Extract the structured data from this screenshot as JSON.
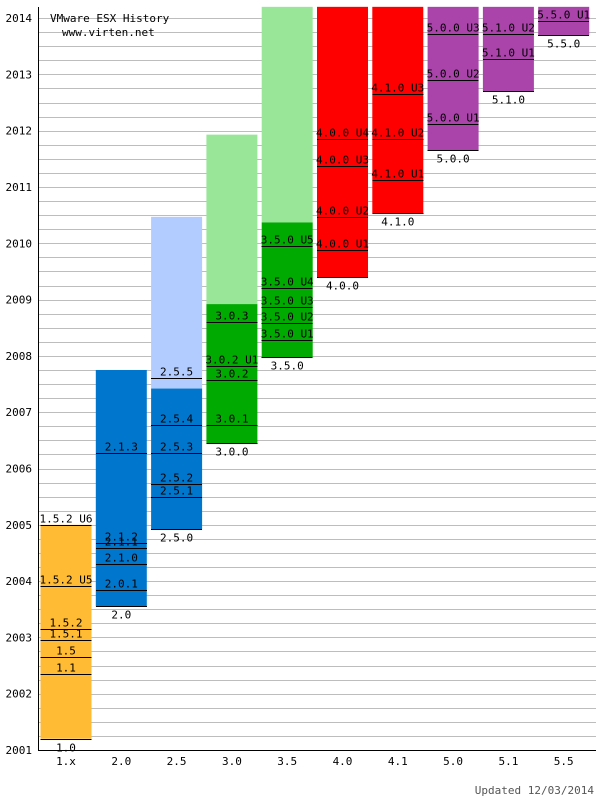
{
  "header": {
    "title": "VMware ESX History",
    "subtitle": "www.virten.net"
  },
  "footer": {
    "updated": "Updated 12/03/2014"
  },
  "chart_data": {
    "type": "bar",
    "title": "VMware ESX History",
    "xlabel": "",
    "ylabel": "",
    "ylim": [
      2001,
      2014.2
    ],
    "y_ticks": [
      2001,
      2002,
      2003,
      2004,
      2005,
      2006,
      2007,
      2008,
      2009,
      2010,
      2011,
      2012,
      2013,
      2014
    ],
    "grid": true,
    "categories": [
      "1.x",
      "2.0",
      "2.5",
      "3.0",
      "3.5",
      "4.0",
      "4.1",
      "5.0",
      "5.1",
      "5.5"
    ],
    "series": [
      {
        "category": "1.x",
        "color": "#ffbb33",
        "start": 2001.2,
        "end": 2005.0,
        "releases": [
          {
            "label": "1.0",
            "y": 2001.2
          },
          {
            "label": "1.1",
            "y": 2002.35
          },
          {
            "label": "1.5",
            "y": 2002.65
          },
          {
            "label": "1.5.1",
            "y": 2002.95
          },
          {
            "label": "1.5.2",
            "y": 2003.15
          },
          {
            "label": "1.5.2 U5",
            "y": 2003.92
          },
          {
            "label": "1.5.2 U6",
            "y": 2005.0
          }
        ]
      },
      {
        "category": "2.0",
        "color": "#0077cc",
        "start": 2003.55,
        "end": 2007.75,
        "releases": [
          {
            "label": "2.0",
            "y": 2003.55
          },
          {
            "label": "2.0.1",
            "y": 2003.85
          },
          {
            "label": "2.1.0",
            "y": 2004.3
          },
          {
            "label": "2.1.1",
            "y": 2004.58
          },
          {
            "label": "2.1.2",
            "y": 2004.68
          },
          {
            "label": "2.1.3",
            "y": 2006.28
          }
        ]
      },
      {
        "category": "2.5",
        "color": "#0077cc",
        "start": 2004.92,
        "end": 2007.42,
        "releases": [
          {
            "label": "2.5.0",
            "y": 2004.92
          },
          {
            "label": "2.5.1",
            "y": 2005.5
          },
          {
            "label": "2.5.2",
            "y": 2005.72
          },
          {
            "label": "2.5.3",
            "y": 2006.27
          },
          {
            "label": "2.5.4",
            "y": 2006.77
          },
          {
            "label": "2.5.5",
            "y": 2007.6
          }
        ],
        "extended": {
          "color": "#b3ccff",
          "start": 2007.42,
          "end": 2010.47
        }
      },
      {
        "category": "3.0",
        "color": "#00aa00",
        "start": 2006.45,
        "end": 2008.92,
        "releases": [
          {
            "label": "3.0.0",
            "y": 2006.45
          },
          {
            "label": "3.0.1",
            "y": 2006.77
          },
          {
            "label": "3.0.2",
            "y": 2007.58
          },
          {
            "label": "3.0.2 U1",
            "y": 2007.82
          },
          {
            "label": "3.0.3",
            "y": 2008.6
          }
        ],
        "extended": {
          "color": "#99e699",
          "start": 2008.92,
          "end": 2011.93
        }
      },
      {
        "category": "3.5",
        "color": "#00aa00",
        "start": 2007.98,
        "end": 2010.37,
        "releases": [
          {
            "label": "3.5.0",
            "y": 2007.98
          },
          {
            "label": "3.5.0 U1",
            "y": 2008.28
          },
          {
            "label": "3.5.0 U2",
            "y": 2008.58
          },
          {
            "label": "3.5.0 U3",
            "y": 2008.87
          },
          {
            "label": "3.5.0 U4",
            "y": 2009.2
          },
          {
            "label": "3.5.0 U5",
            "y": 2009.95
          }
        ],
        "extended": {
          "color": "#99e699",
          "start": 2010.37,
          "end": 2014.2
        }
      },
      {
        "category": "4.0",
        "color": "#ff0000",
        "start": 2009.4,
        "end": 2014.2,
        "releases": [
          {
            "label": "4.0.0",
            "y": 2009.4
          },
          {
            "label": "4.0.0 U1",
            "y": 2009.88
          },
          {
            "label": "4.0.0 U2",
            "y": 2010.47
          },
          {
            "label": "4.0.0 U3",
            "y": 2011.37
          },
          {
            "label": "4.0.0 U4",
            "y": 2011.85
          }
        ]
      },
      {
        "category": "4.1",
        "color": "#ff0000",
        "start": 2010.53,
        "end": 2014.2,
        "releases": [
          {
            "label": "4.1.0",
            "y": 2010.53
          },
          {
            "label": "4.1.0 U1",
            "y": 2011.12
          },
          {
            "label": "4.1.0 U2",
            "y": 2011.85
          },
          {
            "label": "4.1.0 U3",
            "y": 2012.65
          }
        ]
      },
      {
        "category": "5.0",
        "color": "#aa44aa",
        "start": 2011.65,
        "end": 2014.2,
        "releases": [
          {
            "label": "5.0.0",
            "y": 2011.65
          },
          {
            "label": "5.0.0 U1",
            "y": 2012.12
          },
          {
            "label": "5.0.0 U2",
            "y": 2012.9
          },
          {
            "label": "5.0.0 U3",
            "y": 2013.72
          }
        ]
      },
      {
        "category": "5.1",
        "color": "#aa44aa",
        "start": 2012.7,
        "end": 2014.2,
        "releases": [
          {
            "label": "5.1.0",
            "y": 2012.7
          },
          {
            "label": "5.1.0 U1",
            "y": 2013.28
          },
          {
            "label": "5.1.0 U2",
            "y": 2013.72
          }
        ]
      },
      {
        "category": "5.5",
        "color": "#aa44aa",
        "start": 2013.7,
        "end": 2014.2,
        "releases": [
          {
            "label": "5.5.0",
            "y": 2013.7
          },
          {
            "label": "5.5.0 U1",
            "y": 2013.95
          }
        ]
      }
    ]
  }
}
